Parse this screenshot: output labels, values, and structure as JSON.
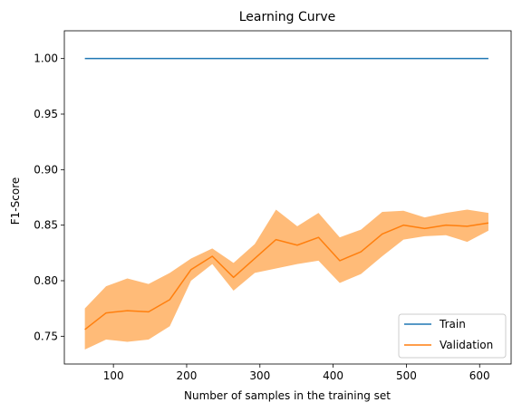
{
  "chart_data": {
    "type": "line",
    "title": "Learning Curve",
    "xlabel": "Number of samples in the training set",
    "ylabel": "F1-Score",
    "xlim": [
      33,
      643
    ],
    "ylim": [
      0.725,
      1.025
    ],
    "xticks": [
      100,
      200,
      300,
      400,
      500,
      600
    ],
    "yticks": [
      0.75,
      0.8,
      0.85,
      0.9,
      0.95,
      1.0
    ],
    "ytick_labels": [
      "0.75",
      "0.80",
      "0.85",
      "0.90",
      "0.95",
      "1.00"
    ],
    "grid": false,
    "legend_position": "lower-right",
    "x": [
      61,
      90,
      119,
      148,
      177,
      206,
      235,
      264,
      293,
      322,
      351,
      380,
      409,
      438,
      467,
      496,
      525,
      554,
      583,
      612
    ],
    "series": [
      {
        "name": "Train",
        "color": "#1f77b4",
        "values": [
          1.0,
          1.0,
          1.0,
          1.0,
          1.0,
          1.0,
          1.0,
          1.0,
          1.0,
          1.0,
          1.0,
          1.0,
          1.0,
          1.0,
          1.0,
          1.0,
          1.0,
          1.0,
          1.0,
          1.0
        ]
      },
      {
        "name": "Validation",
        "color": "#ff7f0e",
        "band_color": "#ffbb78",
        "values": [
          0.756,
          0.771,
          0.773,
          0.772,
          0.783,
          0.81,
          0.822,
          0.803,
          0.82,
          0.837,
          0.832,
          0.839,
          0.818,
          0.826,
          0.842,
          0.85,
          0.847,
          0.85,
          0.849,
          0.852
        ],
        "upper": [
          0.775,
          0.795,
          0.802,
          0.797,
          0.807,
          0.82,
          0.829,
          0.816,
          0.833,
          0.864,
          0.849,
          0.861,
          0.839,
          0.846,
          0.862,
          0.863,
          0.857,
          0.861,
          0.864,
          0.861
        ],
        "lower": [
          0.738,
          0.747,
          0.745,
          0.747,
          0.759,
          0.8,
          0.815,
          0.791,
          0.807,
          0.811,
          0.815,
          0.818,
          0.798,
          0.806,
          0.822,
          0.837,
          0.84,
          0.841,
          0.835,
          0.845
        ]
      }
    ]
  }
}
